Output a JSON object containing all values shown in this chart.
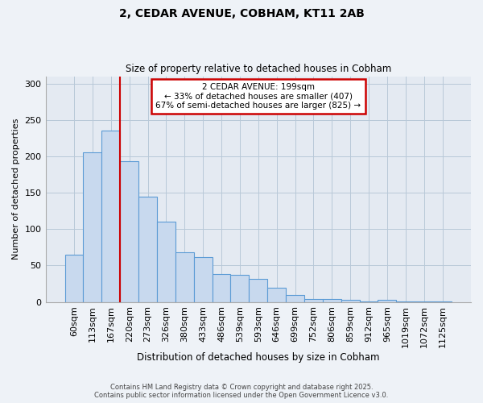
{
  "title": "2, CEDAR AVENUE, COBHAM, KT11 2AB",
  "subtitle": "Size of property relative to detached houses in Cobham",
  "bar_labels": [
    "60sqm",
    "113sqm",
    "167sqm",
    "220sqm",
    "273sqm",
    "326sqm",
    "380sqm",
    "433sqm",
    "486sqm",
    "539sqm",
    "593sqm",
    "646sqm",
    "699sqm",
    "752sqm",
    "806sqm",
    "859sqm",
    "912sqm",
    "965sqm",
    "1019sqm",
    "1072sqm",
    "1125sqm"
  ],
  "bar_values": [
    65,
    205,
    235,
    193,
    145,
    110,
    68,
    62,
    38,
    37,
    32,
    20,
    10,
    4,
    4,
    3,
    1,
    3,
    1,
    1,
    1
  ],
  "bar_color": "#c8d9ee",
  "bar_edge_color": "#5b9bd5",
  "xlabel": "Distribution of detached houses by size in Cobham",
  "ylabel": "Number of detached properties",
  "ylim": [
    0,
    310
  ],
  "yticks": [
    0,
    50,
    100,
    150,
    200,
    250,
    300
  ],
  "vline_x": 2.5,
  "vline_color": "#cc0000",
  "annotation_title": "2 CEDAR AVENUE: 199sqm",
  "annotation_line1": "← 33% of detached houses are smaller (407)",
  "annotation_line2": "67% of semi-detached houses are larger (825) →",
  "annotation_box_color": "#cc0000",
  "footer_line1": "Contains HM Land Registry data © Crown copyright and database right 2025.",
  "footer_line2": "Contains public sector information licensed under the Open Government Licence v3.0.",
  "bg_color": "#eef2f7",
  "plot_bg_color": "#e4eaf2"
}
